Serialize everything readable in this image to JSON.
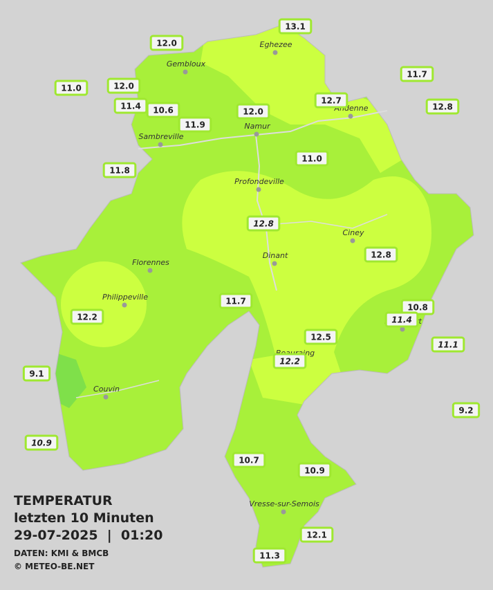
{
  "title": {
    "line1": "TEMPERATUR",
    "line2": "letzten 10 Minuten",
    "line3": "29-07-2025  |  01:20",
    "source": "DATEN: KMI & BMCB",
    "copyright": "© METEO-BE.NET"
  },
  "cities": [
    "Eghezee",
    "Gembloux",
    "Andenne",
    "Namur",
    "Sambreville",
    "Profondeville",
    "Ciney",
    "Dinant",
    "Florennes",
    "Philippeville",
    "Rochefort",
    "Beauraing",
    "Couvin",
    "Vresse-sur-Semois"
  ],
  "stations": [
    {
      "label": "13.1",
      "italic": false
    },
    {
      "label": "12.0",
      "italic": false
    },
    {
      "label": "11.7",
      "italic": false
    },
    {
      "label": "11.0",
      "italic": false
    },
    {
      "label": "12.0",
      "italic": false
    },
    {
      "label": "11.4",
      "italic": false
    },
    {
      "label": "10.6",
      "italic": false
    },
    {
      "label": "12.0",
      "italic": false
    },
    {
      "label": "12.7",
      "italic": false
    },
    {
      "label": "12.8",
      "italic": false
    },
    {
      "label": "11.9",
      "italic": false
    },
    {
      "label": "11.0",
      "italic": false
    },
    {
      "label": "11.8",
      "italic": false
    },
    {
      "label": "12.8",
      "italic": true
    },
    {
      "label": "12.8",
      "italic": false
    },
    {
      "label": "11.7",
      "italic": false
    },
    {
      "label": "10.8",
      "italic": false
    },
    {
      "label": "11.4",
      "italic": true
    },
    {
      "label": "12.2",
      "italic": false
    },
    {
      "label": "12.5",
      "italic": false
    },
    {
      "label": "11.1",
      "italic": true
    },
    {
      "label": "12.2",
      "italic": true
    },
    {
      "label": "9.1",
      "italic": false
    },
    {
      "label": "9.2",
      "italic": false
    },
    {
      "label": "10.9",
      "italic": true
    },
    {
      "label": "10.7",
      "italic": false
    },
    {
      "label": "10.9",
      "italic": false
    },
    {
      "label": "12.1",
      "italic": false
    },
    {
      "label": "11.3",
      "italic": false
    }
  ]
}
